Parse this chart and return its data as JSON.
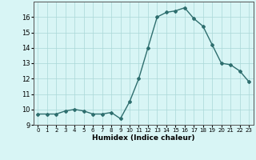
{
  "x": [
    0,
    1,
    2,
    3,
    4,
    5,
    6,
    7,
    8,
    9,
    10,
    11,
    12,
    13,
    14,
    15,
    16,
    17,
    18,
    19,
    20,
    21,
    22,
    23
  ],
  "y": [
    9.7,
    9.7,
    9.7,
    9.9,
    10.0,
    9.9,
    9.7,
    9.7,
    9.8,
    9.4,
    10.5,
    12.0,
    14.0,
    16.0,
    16.3,
    16.4,
    16.6,
    15.9,
    15.4,
    14.2,
    13.0,
    12.9,
    12.5,
    11.8
  ],
  "xlabel": "Humidex (Indice chaleur)",
  "xlim": [
    -0.5,
    23.5
  ],
  "ylim": [
    9.0,
    17.0
  ],
  "yticks": [
    9,
    10,
    11,
    12,
    13,
    14,
    15,
    16
  ],
  "xticks": [
    0,
    1,
    2,
    3,
    4,
    5,
    6,
    7,
    8,
    9,
    10,
    11,
    12,
    13,
    14,
    15,
    16,
    17,
    18,
    19,
    20,
    21,
    22,
    23
  ],
  "line_color": "#2e6e6e",
  "marker": "D",
  "marker_size": 2.0,
  "bg_color": "#d8f5f5",
  "grid_color": "#aad8d8",
  "line_width": 1.0
}
